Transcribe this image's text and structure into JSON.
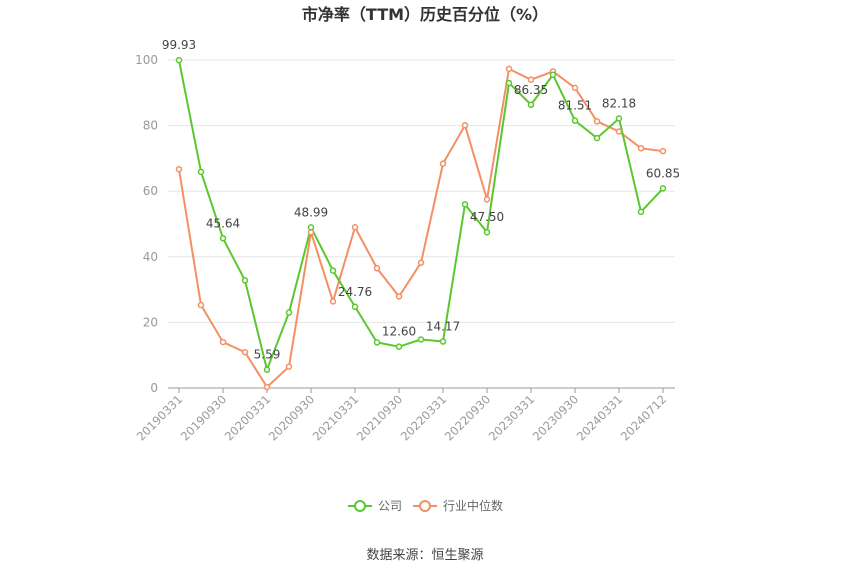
{
  "chart_data": {
    "type": "line",
    "title": "市净率（TTM）历史百分位（%）",
    "ylim": [
      0,
      100
    ],
    "y_ticks": [
      0,
      20,
      40,
      60,
      80,
      100
    ],
    "x_tick_labels": [
      "20190331",
      "20190930",
      "20200331",
      "20200930",
      "20210331",
      "20210930",
      "20220331",
      "20220930",
      "20230331",
      "20230930",
      "20240331",
      "20240712"
    ],
    "x": [
      "20190331",
      "20190630",
      "20190930",
      "20191231",
      "20200331",
      "20200630",
      "20200930",
      "20201231",
      "20210331",
      "20210630",
      "20210930",
      "20211231",
      "20220331",
      "20220630",
      "20220930",
      "20221231",
      "20230331",
      "20230630",
      "20230930",
      "20231231",
      "20240331",
      "20240630",
      "20240712"
    ],
    "series": [
      {
        "name": "公司",
        "color": "#5bc72e",
        "values": [
          99.93,
          65.9,
          45.64,
          32.8,
          5.59,
          23.0,
          48.99,
          35.8,
          24.76,
          13.9,
          12.6,
          14.8,
          14.17,
          56.0,
          47.5,
          93.0,
          86.35,
          95.5,
          81.51,
          76.2,
          82.18,
          53.7,
          60.85
        ]
      },
      {
        "name": "行业中位数",
        "color": "#f39063",
        "values": [
          66.7,
          25.3,
          14.0,
          10.9,
          0.3,
          6.5,
          47.5,
          26.4,
          49.0,
          36.5,
          27.9,
          38.2,
          68.4,
          80.1,
          57.5,
          97.3,
          94.0,
          96.5,
          91.5,
          81.3,
          78.2,
          73.1,
          72.2
        ]
      }
    ],
    "data_labels": [
      {
        "series": 0,
        "index": 0,
        "text": "99.93"
      },
      {
        "series": 0,
        "index": 2,
        "text": "45.64"
      },
      {
        "series": 0,
        "index": 4,
        "text": "5.59"
      },
      {
        "series": 0,
        "index": 6,
        "text": "48.99"
      },
      {
        "series": 0,
        "index": 8,
        "text": "24.76"
      },
      {
        "series": 0,
        "index": 10,
        "text": "12.60"
      },
      {
        "series": 0,
        "index": 12,
        "text": "14.17"
      },
      {
        "series": 0,
        "index": 14,
        "text": "47.50"
      },
      {
        "series": 0,
        "index": 16,
        "text": "86.35"
      },
      {
        "series": 0,
        "index": 18,
        "text": "81.51"
      },
      {
        "series": 0,
        "index": 20,
        "text": "82.18"
      },
      {
        "series": 0,
        "index": 22,
        "text": "60.85"
      }
    ],
    "grid": true,
    "legend_position": "bottom-center"
  },
  "source_text": "数据来源：恒生聚源"
}
